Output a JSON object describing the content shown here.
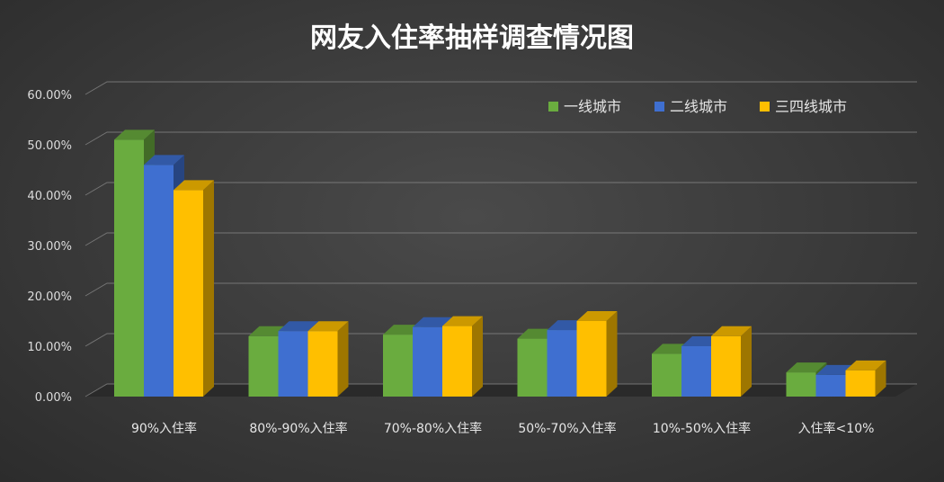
{
  "chart_data": {
    "type": "bar",
    "title": "网友入住率抽样调查情况图",
    "categories": [
      "90%入住率",
      "80%-90%入住率",
      "70%-80%入住率",
      "50%-70%入住率",
      "10%-50%入住率",
      "入住率<10%"
    ],
    "series": [
      {
        "name": "一线城市",
        "color": "#6aac3f",
        "values": [
          51,
          12,
          12.3,
          11.5,
          8.5,
          4.8
        ]
      },
      {
        "name": "二线城市",
        "color": "#3f6fd0",
        "values": [
          46,
          13,
          13.8,
          13.2,
          10,
          4.3
        ]
      },
      {
        "name": "三四线城市",
        "color": "#ffbf00",
        "values": [
          41,
          13,
          14,
          15,
          12,
          5.2
        ]
      }
    ],
    "yticks": [
      "0.00%",
      "10.00%",
      "20.00%",
      "30.00%",
      "40.00%",
      "50.00%",
      "60.00%"
    ],
    "ylim": [
      0,
      60
    ],
    "grid": true,
    "legend_position": "top-right",
    "three_d": true
  }
}
